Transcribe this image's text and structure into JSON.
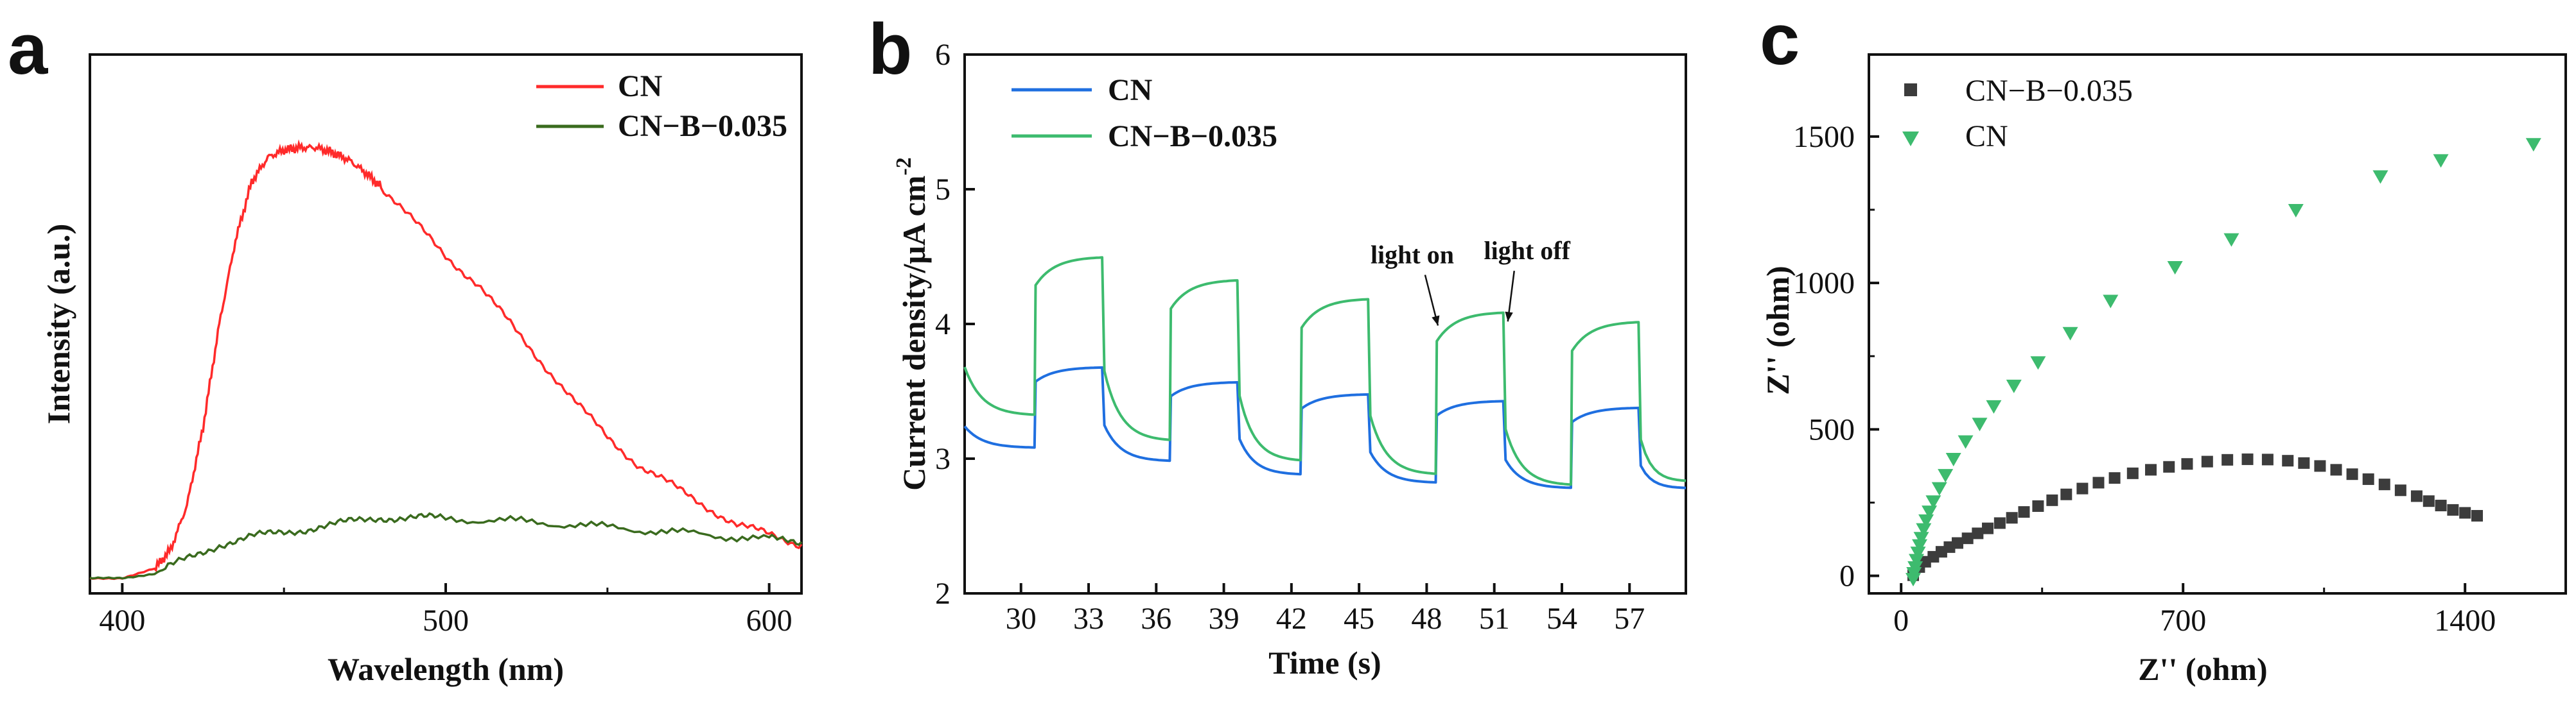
{
  "chart_data": [
    {
      "panel": "a",
      "type": "line",
      "title": "",
      "xlabel": "Wavelength (nm)",
      "ylabel": "Intensity (a.u.)",
      "xlim": [
        390,
        610
      ],
      "ylim": [
        0,
        1.1
      ],
      "xticks": [
        400,
        500,
        600
      ],
      "yticks_shown": false,
      "legend_position": "top-right",
      "series": [
        {
          "name": "CN",
          "color": "#ff2a2a",
          "x": [
            390,
            400,
            410,
            415,
            420,
            425,
            430,
            435,
            440,
            445,
            450,
            455,
            460,
            465,
            470,
            475,
            480,
            490,
            500,
            510,
            520,
            530,
            540,
            550,
            560,
            570,
            580,
            590,
            600,
            610
          ],
          "y": [
            0.03,
            0.032,
            0.05,
            0.09,
            0.18,
            0.34,
            0.55,
            0.72,
            0.84,
            0.89,
            0.905,
            0.91,
            0.91,
            0.9,
            0.885,
            0.86,
            0.83,
            0.76,
            0.69,
            0.63,
            0.55,
            0.47,
            0.39,
            0.32,
            0.26,
            0.22,
            0.18,
            0.14,
            0.12,
            0.1
          ]
        },
        {
          "name": "CN−B−0.035",
          "color": "#3a6b1e",
          "x": [
            390,
            400,
            410,
            420,
            430,
            440,
            450,
            460,
            470,
            480,
            490,
            500,
            520,
            540,
            560,
            580,
            600,
            610
          ],
          "y": [
            0.03,
            0.032,
            0.04,
            0.07,
            0.1,
            0.115,
            0.125,
            0.135,
            0.145,
            0.155,
            0.155,
            0.152,
            0.148,
            0.14,
            0.13,
            0.12,
            0.11,
            0.105
          ]
        }
      ]
    },
    {
      "panel": "b",
      "type": "line",
      "title": "",
      "xlabel": "Time (s)",
      "ylabel": "Current density/μA cm⁻²",
      "ylabel_text": "Current density/μA  cm",
      "ylabel_sup": "-2",
      "xlim": [
        27.5,
        59.5
      ],
      "ylim": [
        2,
        6
      ],
      "xticks": [
        30,
        33,
        36,
        39,
        42,
        45,
        48,
        51,
        54,
        57
      ],
      "yticks": [
        2,
        3,
        4,
        5,
        6
      ],
      "legend_position": "top-left",
      "annotations": [
        {
          "text": "light on",
          "x": 48.5,
          "y": 3.95
        },
        {
          "text": "light off",
          "x": 51.6,
          "y": 3.98
        }
      ],
      "series": [
        {
          "name": "CN",
          "color": "#1f6fe0",
          "cycles": [
            {
              "on": 30.6,
              "off": 33.6,
              "dark": 3.08,
              "peak": 3.68
            },
            {
              "on": 36.6,
              "off": 39.6,
              "dark": 2.98,
              "peak": 3.57
            },
            {
              "on": 42.4,
              "off": 45.4,
              "dark": 2.88,
              "peak": 3.48
            },
            {
              "on": 48.4,
              "off": 51.4,
              "dark": 2.82,
              "peak": 3.43
            },
            {
              "on": 54.4,
              "off": 57.4,
              "dark": 2.78,
              "peak": 3.38
            }
          ],
          "start": [
            27.5,
            3.24
          ],
          "end": [
            59.5,
            2.78
          ]
        },
        {
          "name": "CN−B−0.035",
          "color": "#3dbb6e",
          "cycles": [
            {
              "on": 30.6,
              "off": 33.6,
              "dark": 3.32,
              "peak": 4.5
            },
            {
              "on": 36.6,
              "off": 39.6,
              "dark": 3.13,
              "peak": 4.33
            },
            {
              "on": 42.4,
              "off": 45.4,
              "dark": 2.98,
              "peak": 4.19
            },
            {
              "on": 48.4,
              "off": 51.4,
              "dark": 2.88,
              "peak": 4.09
            },
            {
              "on": 54.4,
              "off": 57.4,
              "dark": 2.8,
              "peak": 4.02
            }
          ],
          "start": [
            27.5,
            3.68
          ],
          "end": [
            59.5,
            2.83
          ]
        }
      ]
    },
    {
      "panel": "c",
      "type": "scatter",
      "title": "",
      "xlabel": "Z'' (ohm)",
      "ylabel": "Z'' (ohm)",
      "xlim": [
        -80,
        1650
      ],
      "ylim": [
        -60,
        1780
      ],
      "xticks": [
        0,
        700,
        1400
      ],
      "yticks": [
        0,
        500,
        1000,
        1500
      ],
      "legend_position": "top-left",
      "series": [
        {
          "name": "CN−B−0.035",
          "marker": "square",
          "color": "#3c3c3c",
          "x": [
            30,
            45,
            60,
            80,
            100,
            120,
            140,
            165,
            190,
            215,
            245,
            275,
            305,
            340,
            375,
            410,
            450,
            490,
            530,
            575,
            620,
            665,
            710,
            760,
            810,
            860,
            910,
            960,
            1000,
            1040,
            1080,
            1120,
            1160,
            1200,
            1240,
            1280,
            1310,
            1340,
            1370,
            1400,
            1430
          ],
          "y": [
            2,
            30,
            48,
            65,
            82,
            98,
            112,
            128,
            145,
            162,
            180,
            198,
            218,
            238,
            258,
            278,
            298,
            318,
            334,
            350,
            362,
            372,
            382,
            390,
            396,
            398,
            397,
            393,
            385,
            375,
            362,
            347,
            330,
            312,
            292,
            272,
            255,
            240,
            225,
            215,
            205
          ]
        },
        {
          "name": "CN",
          "marker": "triangle-down",
          "color": "#3dbb6e",
          "x": [
            30,
            32,
            35,
            38,
            42,
            46,
            50,
            56,
            62,
            70,
            80,
            95,
            110,
            130,
            160,
            195,
            230,
            280,
            340,
            420,
            520,
            680,
            820,
            980,
            1190,
            1340,
            1570
          ],
          "y": [
            -10,
            10,
            30,
            55,
            80,
            105,
            130,
            160,
            190,
            220,
            255,
            300,
            345,
            400,
            460,
            520,
            580,
            650,
            730,
            830,
            940,
            1055,
            1150,
            1250,
            1365,
            1420,
            1475
          ]
        }
      ]
    }
  ]
}
